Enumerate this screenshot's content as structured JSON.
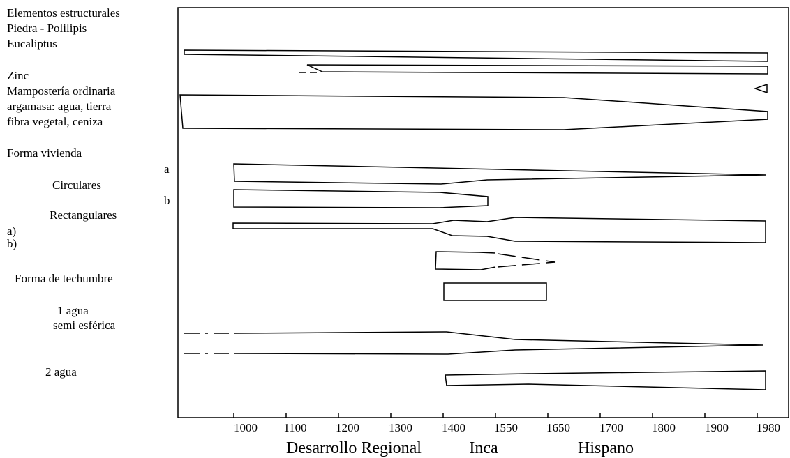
{
  "left_labels": {
    "structural_elements": "Elementos estructurales",
    "stone": "Piedra - Polilipis",
    "eucalyptus": "Eucaliptus",
    "zinc": "Zinc",
    "masonry": "Mampostería ordinaria",
    "mortar_1": "argamasa: agua, tierra",
    "mortar_2": "fibra vegetal, ceniza",
    "house_form": "Forma vivienda",
    "circular": "Circulares",
    "rectangular": "Rectangulares",
    "opt_a": "a)",
    "opt_b": "b)",
    "roof_form": "Forma de techumbre",
    "one_water": "1 agua",
    "semi_spherical": "semi esférica",
    "two_water": "2 agua"
  },
  "row_markers": {
    "a": "a",
    "b": "b"
  },
  "x_axis": {
    "ticks": [
      "1000",
      "1100",
      "1200",
      "1300",
      "1400",
      "1550",
      "1650",
      "1700",
      "1800",
      "1900",
      "1980"
    ],
    "periods": [
      "Desarrollo Regional",
      "Inca",
      "Hispano"
    ]
  },
  "chart_data": {
    "type": "other",
    "x_ticks": [
      "1000",
      "1100",
      "1200",
      "1300",
      "1400",
      "1550",
      "1650",
      "1700",
      "1800",
      "1900",
      "1980"
    ],
    "periods": [
      "Desarrollo Regional",
      "Inca",
      "Hispano"
    ]
  }
}
